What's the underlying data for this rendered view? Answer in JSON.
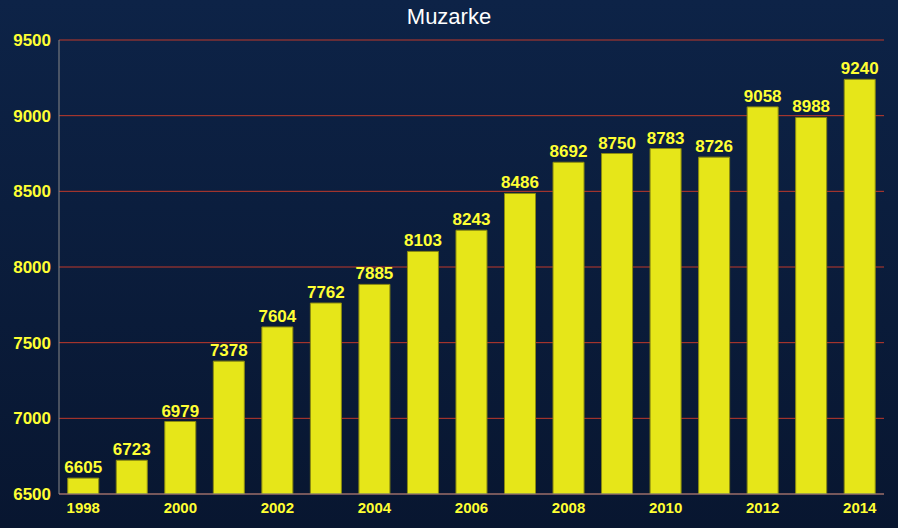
{
  "chart_data": {
    "type": "bar",
    "title": "Muzarke",
    "categories": [
      "1998",
      null,
      "2000",
      null,
      "2002",
      null,
      "2004",
      null,
      "2006",
      null,
      "2008",
      null,
      "2010",
      null,
      "2012",
      null,
      "2014"
    ],
    "values": [
      6605,
      6723,
      6979,
      7378,
      7604,
      7762,
      7885,
      8103,
      8243,
      8486,
      8692,
      8750,
      8783,
      8726,
      9058,
      8988,
      9240
    ],
    "color": "#e6e619",
    "ylim": [
      6500,
      9500
    ],
    "yticks": [
      6500,
      7000,
      7500,
      8000,
      8500,
      9000,
      9500
    ],
    "grid": true,
    "data_labels": true
  }
}
